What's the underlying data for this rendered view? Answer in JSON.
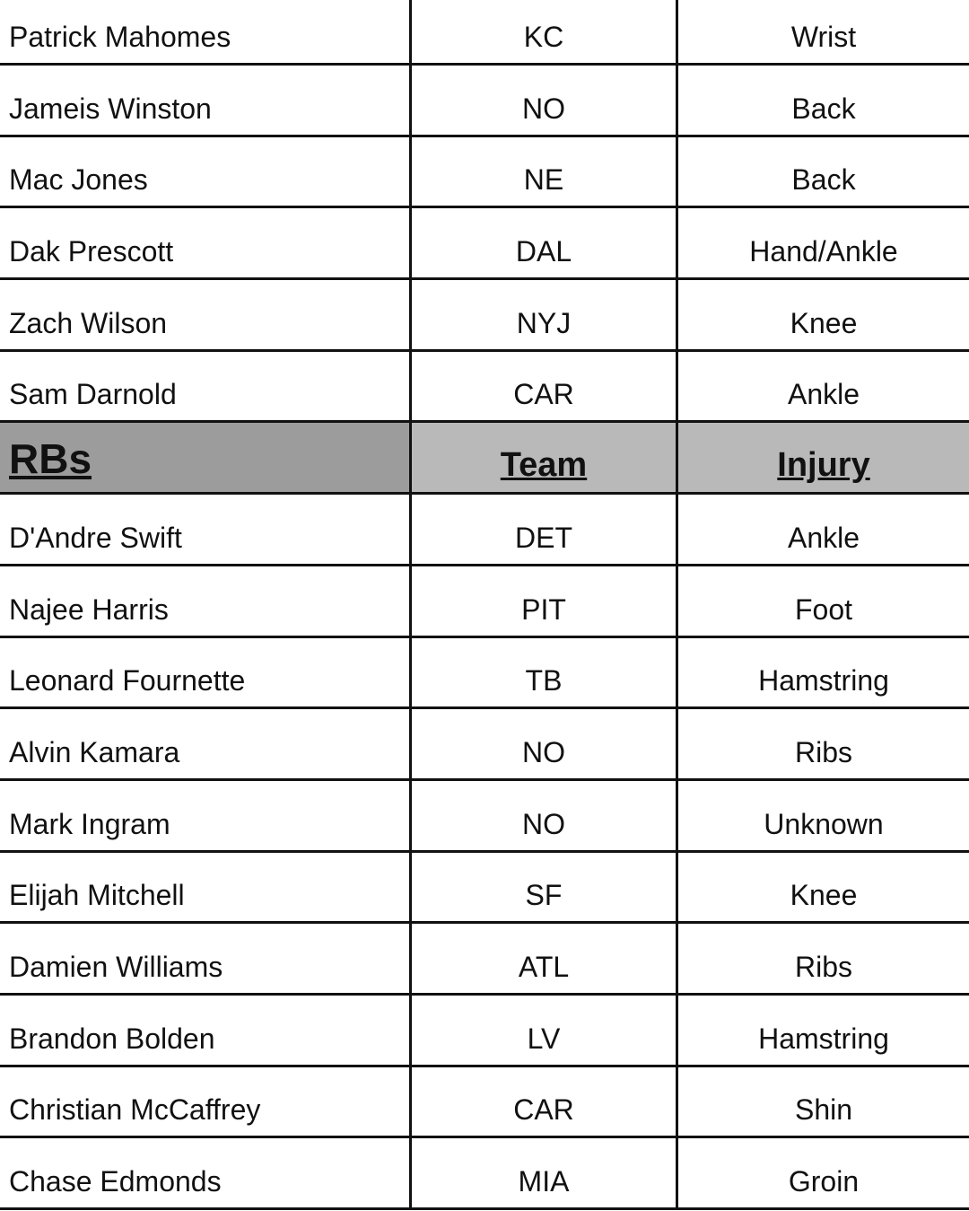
{
  "qb_rows": [
    {
      "player": "Patrick Mahomes",
      "team": "KC",
      "injury": "Wrist"
    },
    {
      "player": "Jameis Winston",
      "team": "NO",
      "injury": "Back"
    },
    {
      "player": "Mac Jones",
      "team": "NE",
      "injury": "Back"
    },
    {
      "player": "Dak Prescott",
      "team": "DAL",
      "injury": "Hand/Ankle"
    },
    {
      "player": "Zach Wilson",
      "team": "NYJ",
      "injury": "Knee"
    },
    {
      "player": "Sam Darnold",
      "team": "CAR",
      "injury": "Ankle"
    }
  ],
  "rb_header": {
    "position": "RBs",
    "team": "Team",
    "injury": "Injury"
  },
  "rb_rows": [
    {
      "player": "D'Andre Swift",
      "team": "DET",
      "injury": "Ankle"
    },
    {
      "player": "Najee Harris",
      "team": "PIT",
      "injury": "Foot"
    },
    {
      "player": "Leonard Fournette",
      "team": "TB",
      "injury": "Hamstring"
    },
    {
      "player": "Alvin Kamara",
      "team": "NO",
      "injury": "Ribs"
    },
    {
      "player": "Mark Ingram",
      "team": "NO",
      "injury": "Unknown"
    },
    {
      "player": "Elijah Mitchell",
      "team": "SF",
      "injury": "Knee"
    },
    {
      "player": "Damien Williams",
      "team": "ATL",
      "injury": "Ribs"
    },
    {
      "player": "Brandon Bolden",
      "team": "LV",
      "injury": "Hamstring"
    },
    {
      "player": "Christian McCaffrey",
      "team": "CAR",
      "injury": "Shin"
    },
    {
      "player": "Chase Edmonds",
      "team": "MIA",
      "injury": "Groin"
    }
  ],
  "colors": {
    "header_position_bg": "#9c9c9c",
    "header_bg": "#b9b9b9",
    "grid": "#111111"
  }
}
